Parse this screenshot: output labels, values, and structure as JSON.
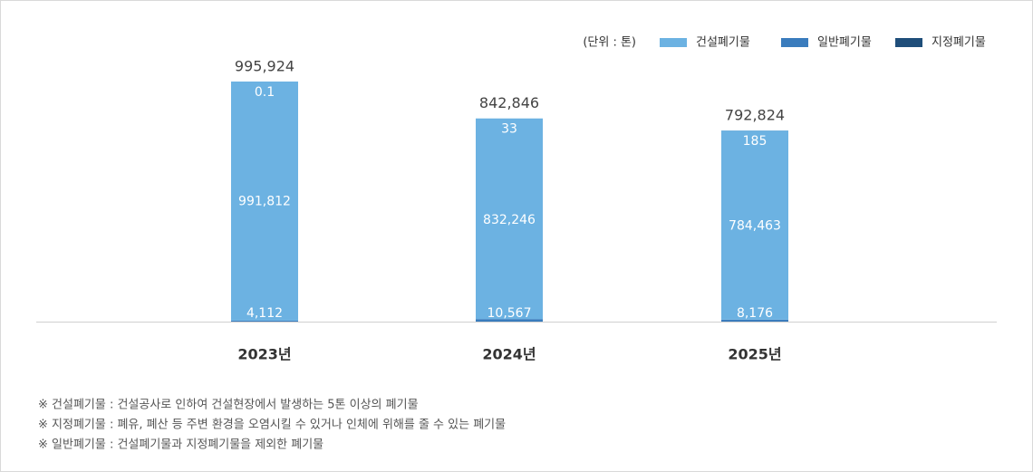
{
  "chart_data": {
    "type": "stacked_bar",
    "unit_label": "(단위 : 톤)",
    "categories": [
      "2023년",
      "2024년",
      "2025년"
    ],
    "series": [
      {
        "name": "건설폐기물",
        "color": "#6cb2e2",
        "values": [
          991812,
          832246,
          784463
        ],
        "value_labels": [
          "991,812",
          "832,246",
          "784,463"
        ]
      },
      {
        "name": "일반폐기물",
        "color": "#3a7cbd",
        "values": [
          4112,
          10567,
          8176
        ],
        "value_labels": [
          "4,112",
          "10,567",
          "8,176"
        ]
      },
      {
        "name": "지정폐기물",
        "color": "#1f4e7a",
        "values": [
          0.1,
          33,
          185
        ]
      }
    ],
    "totals": [
      995924,
      842846,
      792824
    ],
    "total_labels": [
      "995,924",
      "842,846",
      "792,824"
    ],
    "notes": [
      "※ 건설폐기물 : 건설공사로 인하여 건설현장에서 발생하는 5톤 이상의 폐기물",
      "※ 지정폐기물 : 폐유, 폐산 등 주변 환경을 오염시킬 수 있거나 인체에 위해를 줄 수 있는 폐기물",
      "※ 일반폐기물 : 건설폐기물과 지정폐기물을 제외한 폐기물"
    ]
  }
}
